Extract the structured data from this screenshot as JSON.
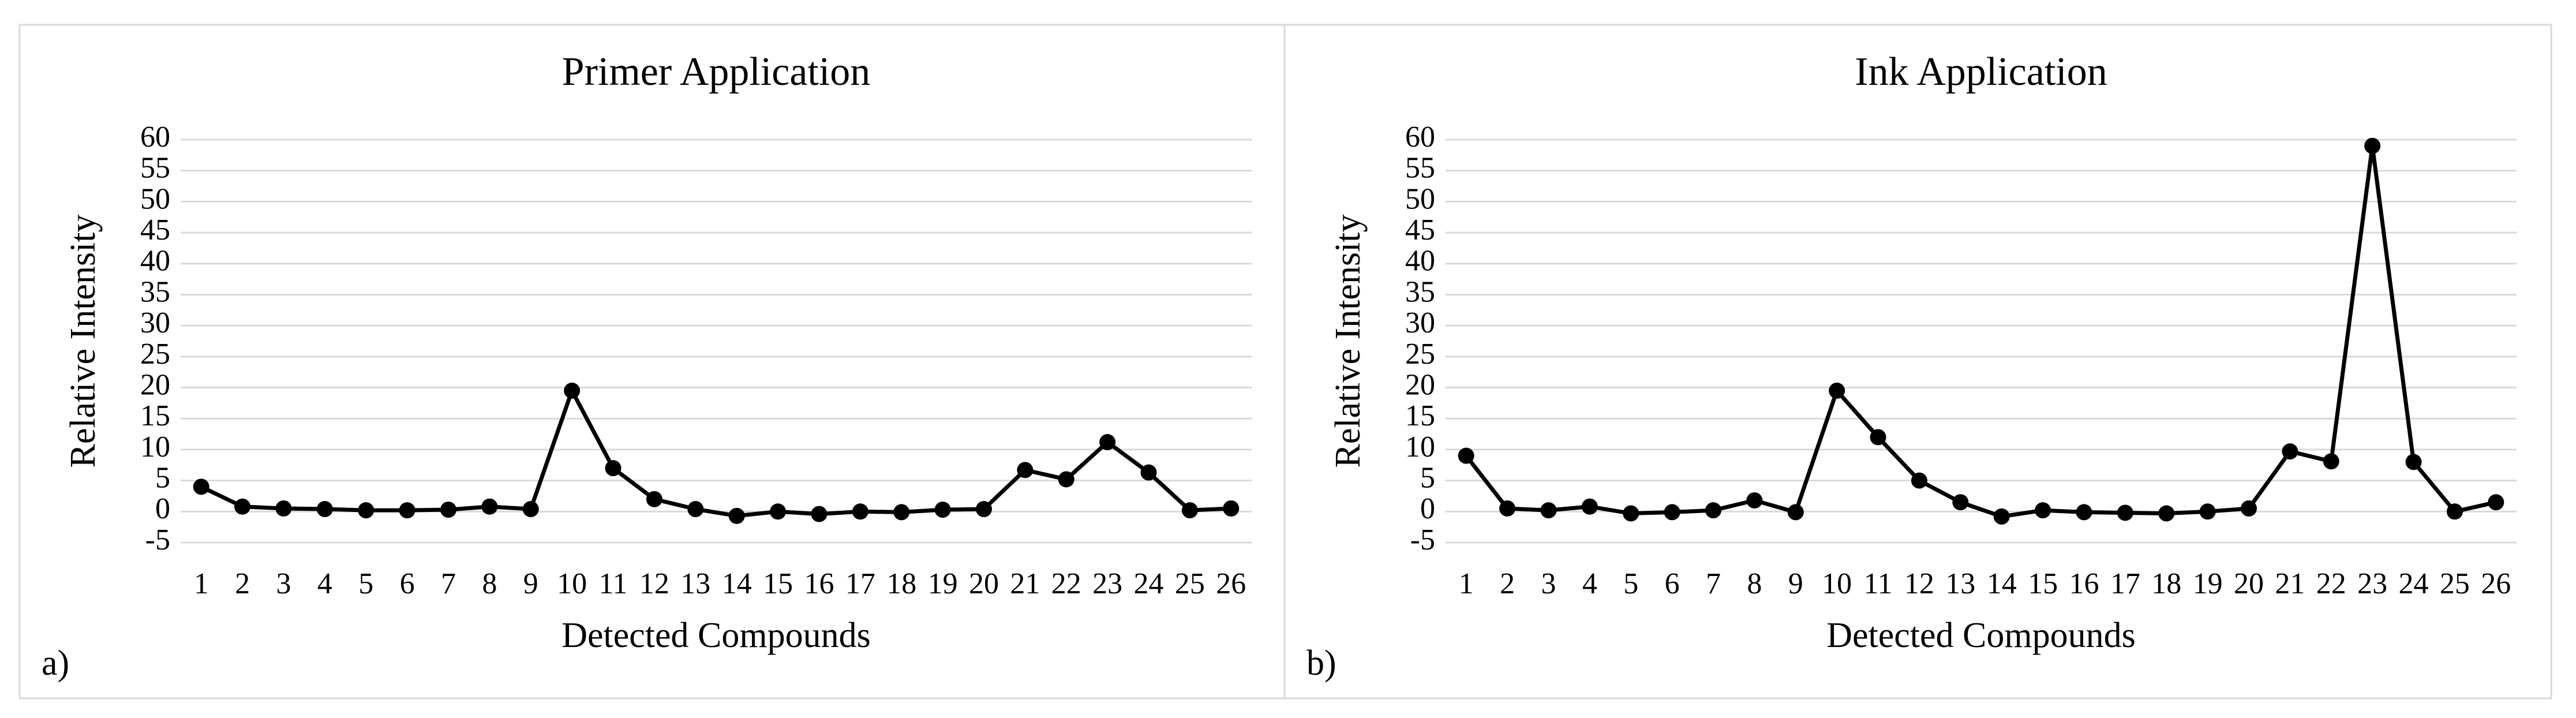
{
  "chart_data": [
    {
      "type": "line",
      "title": "Primer Application",
      "panel_label": "a)",
      "x_label": "Detected Compounds",
      "y_label": "Relative Intensity",
      "categories": [
        "1",
        "2",
        "3",
        "4",
        "5",
        "6",
        "7",
        "8",
        "9",
        "10",
        "11",
        "12",
        "13",
        "14",
        "15",
        "16",
        "17",
        "18",
        "19",
        "20",
        "21",
        "22",
        "23",
        "24",
        "25",
        "26"
      ],
      "values": [
        4,
        0.8,
        0.5,
        0.4,
        0.2,
        0.2,
        0.3,
        0.8,
        0.4,
        19.5,
        7,
        2,
        0.4,
        -0.7,
        0,
        -0.4,
        0,
        -0.1,
        0.3,
        0.4,
        6.7,
        5.2,
        11.2,
        6.3,
        0.2,
        0.5
      ],
      "color": "#000000",
      "ylim": [
        -5,
        60
      ],
      "yticks": [
        -5,
        0,
        5,
        10,
        15,
        20,
        25,
        30,
        35,
        40,
        45,
        50,
        55,
        60
      ],
      "grid": true
    },
    {
      "type": "line",
      "title": "Ink Application",
      "panel_label": "b)",
      "x_label": "Detected Compounds",
      "y_label": "Relative Intensity",
      "categories": [
        "1",
        "2",
        "3",
        "4",
        "5",
        "6",
        "7",
        "8",
        "9",
        "10",
        "11",
        "12",
        "13",
        "14",
        "15",
        "16",
        "17",
        "18",
        "19",
        "20",
        "21",
        "22",
        "23",
        "24",
        "25",
        "26"
      ],
      "values": [
        9,
        0.5,
        0.2,
        0.8,
        -0.3,
        -0.1,
        0.2,
        1.8,
        -0.1,
        19.5,
        12,
        5,
        1.5,
        -0.8,
        0.2,
        -0.1,
        -0.2,
        -0.3,
        0,
        0.5,
        9.7,
        8.1,
        59,
        8,
        0,
        1.5
      ],
      "color": "#000000",
      "ylim": [
        -5,
        60
      ],
      "yticks": [
        -5,
        0,
        5,
        10,
        15,
        20,
        25,
        30,
        35,
        40,
        45,
        50,
        55,
        60
      ],
      "grid": true
    }
  ]
}
